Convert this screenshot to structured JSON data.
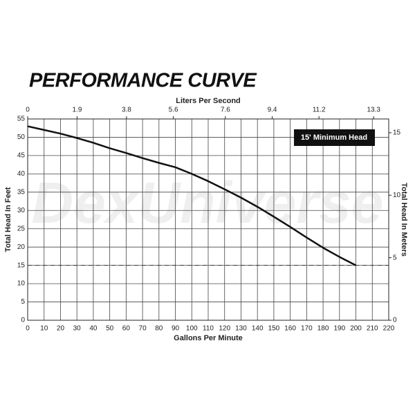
{
  "chart_data": {
    "type": "line",
    "title": "PERFORMANCE CURVE",
    "watermark": "DexUniverse",
    "x_label": "Gallons Per Minute",
    "x2_label": "Liters Per Second",
    "y_label": "Total Head In Feet",
    "y2_label": "Total Head In Meters",
    "annotation": "15' Minimum Head",
    "hline": 15,
    "x": [
      0,
      10,
      20,
      30,
      40,
      50,
      60,
      70,
      80,
      90,
      100,
      110,
      120,
      130,
      140,
      150,
      160,
      170,
      180,
      190,
      200
    ],
    "values": [
      53,
      52,
      51,
      49.8,
      48.5,
      47,
      45.7,
      44.3,
      43,
      41.8,
      40,
      38,
      35.8,
      33.5,
      31,
      28.3,
      25.5,
      22.6,
      19.8,
      17.3,
      15
    ],
    "color": "#111111",
    "xlim": [
      0,
      220
    ],
    "xticks": [
      0,
      10,
      20,
      30,
      40,
      50,
      60,
      70,
      80,
      90,
      100,
      110,
      120,
      130,
      140,
      150,
      160,
      170,
      180,
      190,
      200,
      210,
      220
    ],
    "x2lim": [
      0,
      13.88
    ],
    "x2ticks": [
      0,
      1.9,
      3.8,
      5.6,
      7.6,
      9.4,
      11.2,
      13.3
    ],
    "ylim": [
      0,
      55
    ],
    "yticks": [
      0,
      5,
      10,
      15,
      20,
      25,
      30,
      35,
      40,
      45,
      50,
      55
    ],
    "y2lim": [
      0,
      16.1
    ],
    "y2ticks": [
      0,
      5,
      10,
      15
    ],
    "grid": true
  }
}
